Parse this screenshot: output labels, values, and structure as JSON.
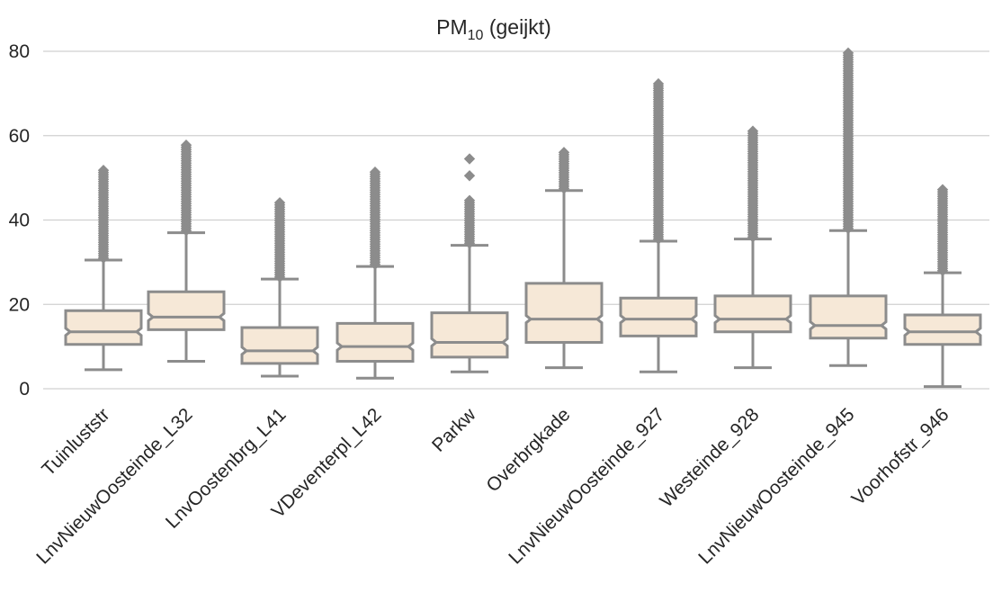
{
  "chart_data": {
    "type": "box",
    "title": "PM",
    "title_subscript": "10",
    "title_suffix": " (geijkt)",
    "xlabel": "",
    "ylabel": "",
    "ylim": [
      0,
      80
    ],
    "yticks": [
      0,
      20,
      40,
      60,
      80
    ],
    "grid": "horizontal",
    "colors": {
      "box_fill": "#f6e8d7",
      "box_edge": "#8c8c8c",
      "grid": "#d0d0d0",
      "text": "#262626"
    },
    "categories": [
      "Tuinluststr",
      "LnvNieuwOosteinde_L32",
      "LnvOostenbrg_L41",
      "VDeventerpl_L42",
      "Parkw",
      "Overbrgkade",
      "LnvNieuwOosteinde_927",
      "Westeinde_928",
      "LnvNieuwOosteinde_945",
      "Voorhofstr_946"
    ],
    "boxes": [
      {
        "whislo": 4.5,
        "q1": 10.5,
        "med": 13.5,
        "q3": 18.5,
        "whishi": 30.5,
        "fliers_from": 31,
        "fliers_to": 52,
        "extra_fliers": []
      },
      {
        "whislo": 6.5,
        "q1": 14.0,
        "med": 17.0,
        "q3": 23.0,
        "whishi": 37.0,
        "fliers_from": 37.5,
        "fliers_to": 58,
        "extra_fliers": []
      },
      {
        "whislo": 3.0,
        "q1": 6.0,
        "med": 9.0,
        "q3": 14.5,
        "whishi": 26.0,
        "fliers_from": 26.5,
        "fliers_to": 44.5,
        "extra_fliers": []
      },
      {
        "whislo": 2.5,
        "q1": 6.5,
        "med": 10.0,
        "q3": 15.5,
        "whishi": 29.0,
        "fliers_from": 29.5,
        "fliers_to": 51.5,
        "extra_fliers": []
      },
      {
        "whislo": 4.0,
        "q1": 7.5,
        "med": 11.0,
        "q3": 18.0,
        "whishi": 34.0,
        "fliers_from": 34.5,
        "fliers_to": 45,
        "extra_fliers": [
          50.5,
          54.5
        ]
      },
      {
        "whislo": 5.0,
        "q1": 11.0,
        "med": 16.5,
        "q3": 25.0,
        "whishi": 47.0,
        "fliers_from": 47.5,
        "fliers_to": 56.5,
        "extra_fliers": []
      },
      {
        "whislo": 4.0,
        "q1": 12.5,
        "med": 16.5,
        "q3": 21.5,
        "whishi": 35.0,
        "fliers_from": 35.5,
        "fliers_to": 72.5,
        "extra_fliers": []
      },
      {
        "whislo": 5.0,
        "q1": 13.5,
        "med": 16.5,
        "q3": 22.0,
        "whishi": 35.5,
        "fliers_from": 36,
        "fliers_to": 61.5,
        "extra_fliers": []
      },
      {
        "whislo": 5.5,
        "q1": 12.0,
        "med": 15.0,
        "q3": 22.0,
        "whishi": 37.5,
        "fliers_from": 38,
        "fliers_to": 80,
        "extra_fliers": []
      },
      {
        "whislo": 0.5,
        "q1": 10.5,
        "med": 13.5,
        "q3": 17.5,
        "whishi": 27.5,
        "fliers_from": 28,
        "fliers_to": 47.5,
        "extra_fliers": []
      }
    ]
  }
}
